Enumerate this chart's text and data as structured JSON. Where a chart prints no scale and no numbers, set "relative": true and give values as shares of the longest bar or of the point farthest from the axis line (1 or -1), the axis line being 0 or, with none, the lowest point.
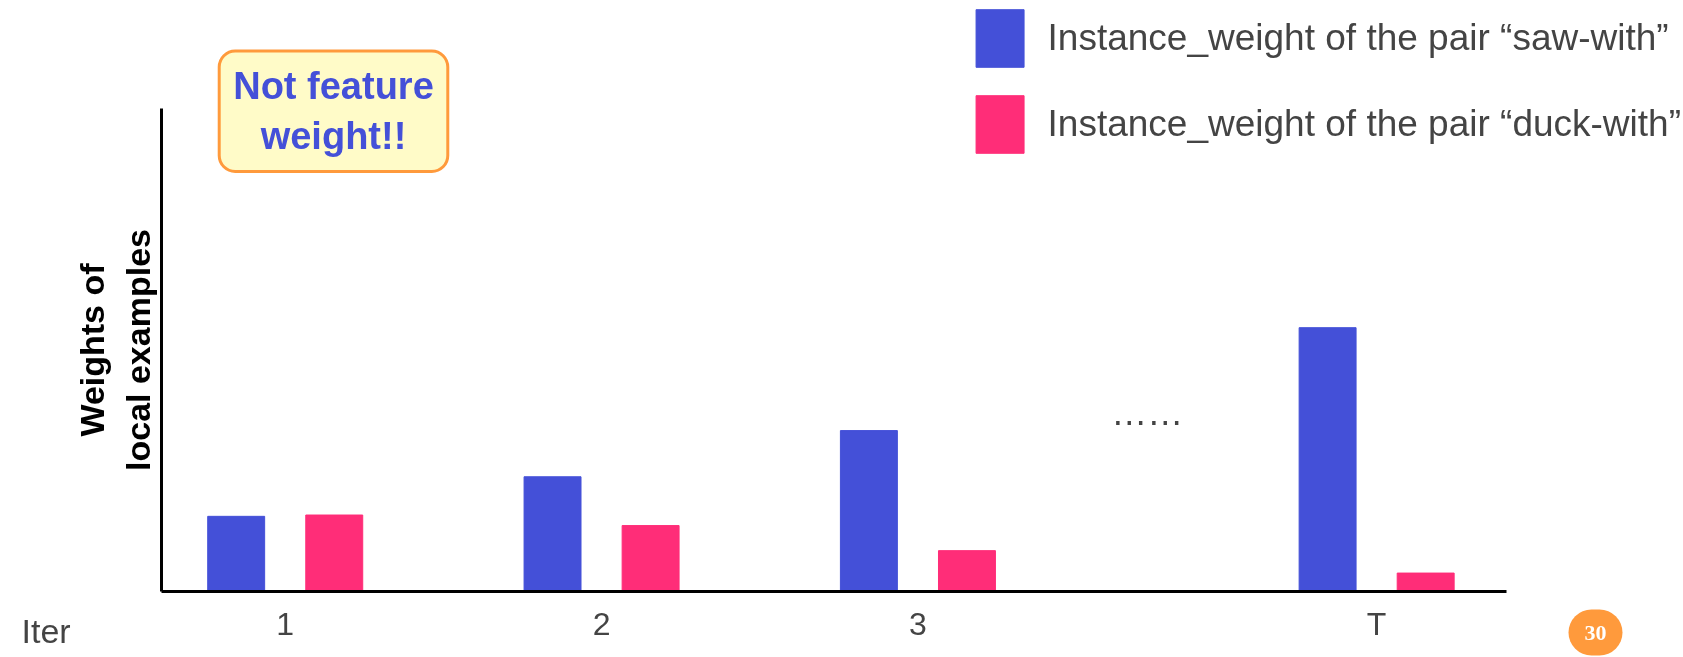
{
  "chart_data": {
    "type": "bar",
    "relative": true,
    "xlabel": "Iter",
    "ylabel": "Weights of local examples",
    "categories": [
      "1",
      "2",
      "3",
      "T"
    ],
    "series": [
      {
        "name": "Instance_weight of the pair “saw-with”",
        "color": "#4450d8",
        "values": [
          0.285,
          0.435,
          0.61,
          1
        ]
      },
      {
        "name": "Instance_weight of the pair “duck-with”",
        "color": "#ff2d78",
        "values": [
          0.29,
          0.25,
          0.155,
          0.07
        ]
      }
    ],
    "legend": "top right",
    "grid": false,
    "annotations": [
      "Not feature weight!!",
      "……",
      "30"
    ]
  }
}
